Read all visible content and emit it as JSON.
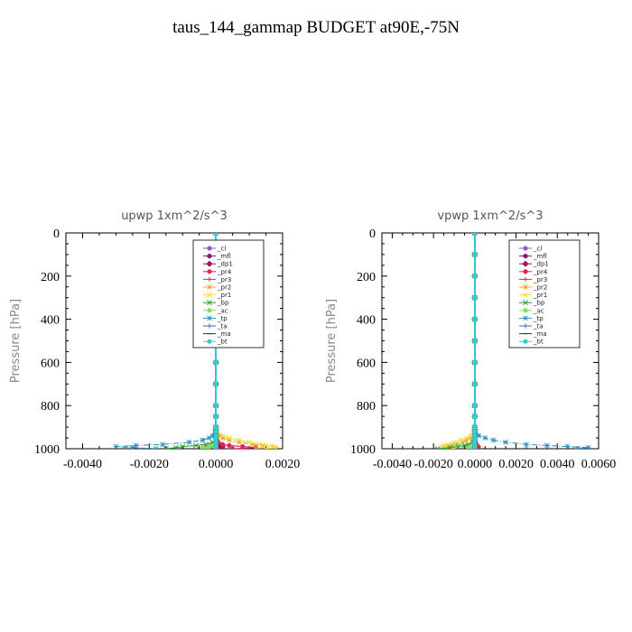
{
  "title": "taus_144_gammap  BUDGET at90E,-75N",
  "chart_data": [
    {
      "type": "line",
      "title": "upwp   1xm^2/s^3",
      "xlabel": "",
      "ylabel": "Pressure  [hPa]",
      "xlim": [
        -0.0045,
        0.002
      ],
      "ylim": [
        1000,
        0
      ],
      "xticks": [
        -0.004,
        -0.002,
        0.0,
        0.002
      ],
      "xtick_labels": [
        "-0.0040",
        "-0.0020",
        "0.0000",
        "0.0020"
      ],
      "yticks": [
        0,
        200,
        400,
        600,
        800,
        1000
      ],
      "ytick_labels": [
        "0",
        "200",
        "400",
        "600",
        "800",
        "1000"
      ],
      "legend_position": "top-right",
      "y": [
        0,
        100,
        200,
        300,
        400,
        500,
        600,
        700,
        800,
        850,
        900,
        920,
        940,
        950,
        960,
        970,
        980,
        985,
        990,
        995,
        1000
      ],
      "series": [
        {
          "name": "_cl",
          "color": "#9b59d0",
          "marker": "o",
          "values": [
            0,
            0,
            0,
            0,
            0,
            0,
            0,
            0,
            0,
            0,
            0,
            0,
            0,
            0,
            0,
            0,
            0,
            0,
            0,
            0,
            0
          ]
        },
        {
          "name": "_mfl",
          "color": "#7a1f7a",
          "marker": "o",
          "values": [
            0,
            0,
            0,
            0,
            0,
            0,
            0,
            0,
            0,
            0,
            0,
            0,
            0,
            0,
            0,
            0,
            0,
            0,
            0,
            0,
            0
          ]
        },
        {
          "name": "_dp1",
          "color": "#a0145a",
          "marker": "d",
          "values": [
            0,
            0,
            0,
            0,
            0,
            0,
            0,
            0,
            0,
            0,
            0,
            0,
            0,
            0,
            2e-05,
            5e-05,
            0.0001,
            0.00015,
            0.0002,
            0.0001,
            0
          ]
        },
        {
          "name": "_pr4",
          "color": "#e0245a",
          "marker": "o",
          "values": [
            0,
            0,
            0,
            0,
            0,
            0,
            0,
            0,
            0,
            0,
            0,
            0,
            0,
            0,
            0,
            5e-05,
            0.0002,
            0.0004,
            0.0008,
            0.0012,
            0.0005
          ]
        },
        {
          "name": "_pr3",
          "color": "#e83030",
          "marker": "+",
          "values": [
            0,
            0,
            0,
            0,
            0,
            0,
            0,
            0,
            0,
            0,
            0,
            0,
            0,
            0,
            0,
            -5e-05,
            -0.0001,
            -0.0002,
            -0.0003,
            -0.0002,
            0
          ]
        },
        {
          "name": "_pr2",
          "color": "#f0a030",
          "marker": "*",
          "values": [
            0,
            0,
            0,
            0,
            0,
            0,
            0,
            0,
            0,
            0,
            0,
            3e-05,
            0.0001,
            0.0002,
            0.0004,
            0.0007,
            0.0011,
            0.0014,
            0.0017,
            0.0018,
            0.0012
          ]
        },
        {
          "name": "_pr1",
          "color": "#f0e040",
          "marker": "x",
          "values": [
            0,
            0,
            0,
            0,
            0,
            0,
            0,
            0,
            0,
            0,
            0,
            5e-05,
            0.0002,
            0.0004,
            0.0007,
            0.001,
            0.0013,
            0.0015,
            0.0017,
            0.0018,
            0.0015
          ]
        },
        {
          "name": "_bp",
          "color": "#2aa02a",
          "marker": "x",
          "values": [
            0,
            0,
            0,
            0,
            0,
            0,
            0,
            0,
            0,
            0,
            0,
            0,
            0,
            0,
            0,
            -0.0001,
            -0.0003,
            -0.0006,
            -0.001,
            -0.0012,
            -0.0015
          ]
        },
        {
          "name": "_ac",
          "color": "#80e060",
          "marker": "o",
          "values": [
            0,
            0,
            0,
            0,
            0,
            0,
            0,
            0,
            0,
            0,
            0,
            0,
            0,
            0,
            0,
            0,
            -5e-05,
            -0.0001,
            -0.0002,
            -0.0004,
            -0.0003
          ]
        },
        {
          "name": "_tp",
          "color": "#2a90c0",
          "marker": "*",
          "values": [
            0,
            0,
            0,
            0,
            0,
            0,
            0,
            0,
            0,
            0,
            0,
            -3e-05,
            -0.0001,
            -0.0002,
            -0.0004,
            -0.0008,
            -0.0016,
            -0.0024,
            -0.003,
            -0.0025,
            -0.0018
          ]
        },
        {
          "name": "_ta",
          "color": "#3060e0",
          "marker": "+",
          "values": [
            0,
            0,
            0,
            0,
            0,
            0,
            0,
            0,
            0,
            0,
            0,
            0,
            0,
            0,
            0,
            0,
            0,
            0,
            0,
            0,
            0
          ]
        },
        {
          "name": "_ma",
          "color": "#333333",
          "marker": "-",
          "values": [
            0,
            0,
            0,
            0,
            0,
            0,
            0,
            0,
            0,
            0,
            0,
            0,
            0,
            0,
            0,
            0,
            0,
            0,
            0,
            0,
            0
          ]
        },
        {
          "name": "_bt",
          "color": "#30d0d0",
          "marker": "o",
          "values": [
            0,
            0,
            0,
            0,
            0,
            0,
            0,
            0,
            0,
            0,
            0,
            0,
            0,
            0,
            0,
            0,
            0,
            0,
            0,
            0,
            0
          ]
        }
      ]
    },
    {
      "type": "line",
      "title": "vpwp   1xm^2/s^3",
      "xlabel": "",
      "ylabel": "Pressure  [hPa]",
      "xlim": [
        -0.0045,
        0.006
      ],
      "ylim": [
        1000,
        0
      ],
      "xticks": [
        -0.004,
        -0.002,
        0.0,
        0.002,
        0.004,
        0.006
      ],
      "xtick_labels": [
        "-0.0040",
        "-0.0020",
        "0.0000",
        "0.0020",
        "0.0040",
        "0.0060"
      ],
      "yticks": [
        0,
        200,
        400,
        600,
        800,
        1000
      ],
      "ytick_labels": [
        "0",
        "200",
        "400",
        "600",
        "800",
        "1000"
      ],
      "legend_position": "top-right",
      "y": [
        0,
        100,
        200,
        300,
        400,
        500,
        600,
        700,
        800,
        850,
        900,
        920,
        940,
        950,
        960,
        970,
        980,
        985,
        990,
        995,
        1000
      ],
      "series": [
        {
          "name": "_cl",
          "color": "#9b59d0",
          "marker": "o",
          "values": [
            0,
            0,
            0,
            0,
            0,
            0,
            0,
            0,
            0,
            0,
            0,
            0,
            0,
            0,
            0,
            0,
            0,
            0,
            0,
            0,
            0
          ]
        },
        {
          "name": "_mfl",
          "color": "#7a1f7a",
          "marker": "o",
          "values": [
            0,
            0,
            0,
            0,
            0,
            0,
            0,
            0,
            0,
            0,
            0,
            0,
            0,
            0,
            0,
            0,
            0,
            0,
            0,
            0,
            0
          ]
        },
        {
          "name": "_dp1",
          "color": "#a0145a",
          "marker": "d",
          "values": [
            0,
            0,
            0,
            0,
            0,
            0,
            0,
            0,
            0,
            0,
            0,
            0,
            0,
            0,
            0,
            2e-05,
            5e-05,
            0.0001,
            0.00015,
            0.0001,
            0
          ]
        },
        {
          "name": "_pr4",
          "color": "#e0245a",
          "marker": "o",
          "values": [
            0,
            0,
            0,
            0,
            0,
            0,
            0,
            0,
            0,
            0,
            0,
            0,
            0,
            0,
            0,
            0,
            -0.0001,
            -0.0002,
            -0.0003,
            -0.0002,
            -0.0001
          ]
        },
        {
          "name": "_pr3",
          "color": "#e83030",
          "marker": "+",
          "values": [
            0,
            0,
            0,
            0,
            0,
            0,
            0,
            0,
            0,
            0,
            0,
            0,
            0,
            0,
            0,
            0,
            5e-05,
            0.0001,
            0.0002,
            0.0001,
            0
          ]
        },
        {
          "name": "_pr2",
          "color": "#f0a030",
          "marker": "*",
          "values": [
            0,
            0,
            0,
            0,
            0,
            0,
            0,
            0,
            0,
            0,
            0,
            0,
            -0.0001,
            -0.0002,
            -0.0004,
            -0.0006,
            -0.0009,
            -0.0011,
            -0.0013,
            -0.0012,
            -0.001
          ]
        },
        {
          "name": "_pr1",
          "color": "#f0e040",
          "marker": "x",
          "values": [
            0,
            0,
            0,
            0,
            0,
            0,
            0,
            0,
            0,
            0,
            0,
            -5e-05,
            -0.0002,
            -0.0004,
            -0.0007,
            -0.001,
            -0.0013,
            -0.0015,
            -0.0016,
            -0.0014,
            -0.001
          ]
        },
        {
          "name": "_bp",
          "color": "#2aa02a",
          "marker": "x",
          "values": [
            0,
            0,
            0,
            0,
            0,
            0,
            0,
            0,
            0,
            0,
            0,
            0,
            0,
            0,
            0,
            -0.0001,
            -0.0003,
            -0.0005,
            -0.0008,
            -0.0012,
            -0.0018
          ]
        },
        {
          "name": "_ac",
          "color": "#80e060",
          "marker": "o",
          "values": [
            0,
            0,
            0,
            0,
            0,
            0,
            0,
            0,
            0,
            0,
            0,
            0,
            0,
            0,
            0,
            0,
            -5e-05,
            -0.0001,
            -0.0002,
            -0.0003,
            -0.0002
          ]
        },
        {
          "name": "_tp",
          "color": "#2a90c0",
          "marker": "*",
          "values": [
            0,
            0,
            0,
            0,
            0,
            0,
            0,
            0,
            0,
            0,
            0,
            5e-05,
            0.0002,
            0.0005,
            0.0009,
            0.0015,
            0.0025,
            0.0035,
            0.0045,
            0.0055,
            0.005
          ]
        },
        {
          "name": "_ta",
          "color": "#3060e0",
          "marker": "+",
          "values": [
            0,
            0,
            0,
            0,
            0,
            0,
            0,
            0,
            0,
            0,
            0,
            0,
            0,
            0,
            0,
            0,
            0,
            0,
            0,
            0,
            0
          ]
        },
        {
          "name": "_ma",
          "color": "#333333",
          "marker": "-",
          "values": [
            0,
            0,
            0,
            0,
            0,
            0,
            0,
            0,
            0,
            0,
            0,
            0,
            0,
            0,
            0,
            0,
            0,
            0,
            0,
            0,
            0
          ]
        },
        {
          "name": "_bt",
          "color": "#30d0d0",
          "marker": "o",
          "values": [
            0,
            0,
            0,
            0,
            0,
            0,
            0,
            0,
            0,
            0,
            0,
            0,
            0,
            0,
            0,
            0,
            0,
            0,
            0,
            0,
            0
          ]
        }
      ]
    }
  ]
}
